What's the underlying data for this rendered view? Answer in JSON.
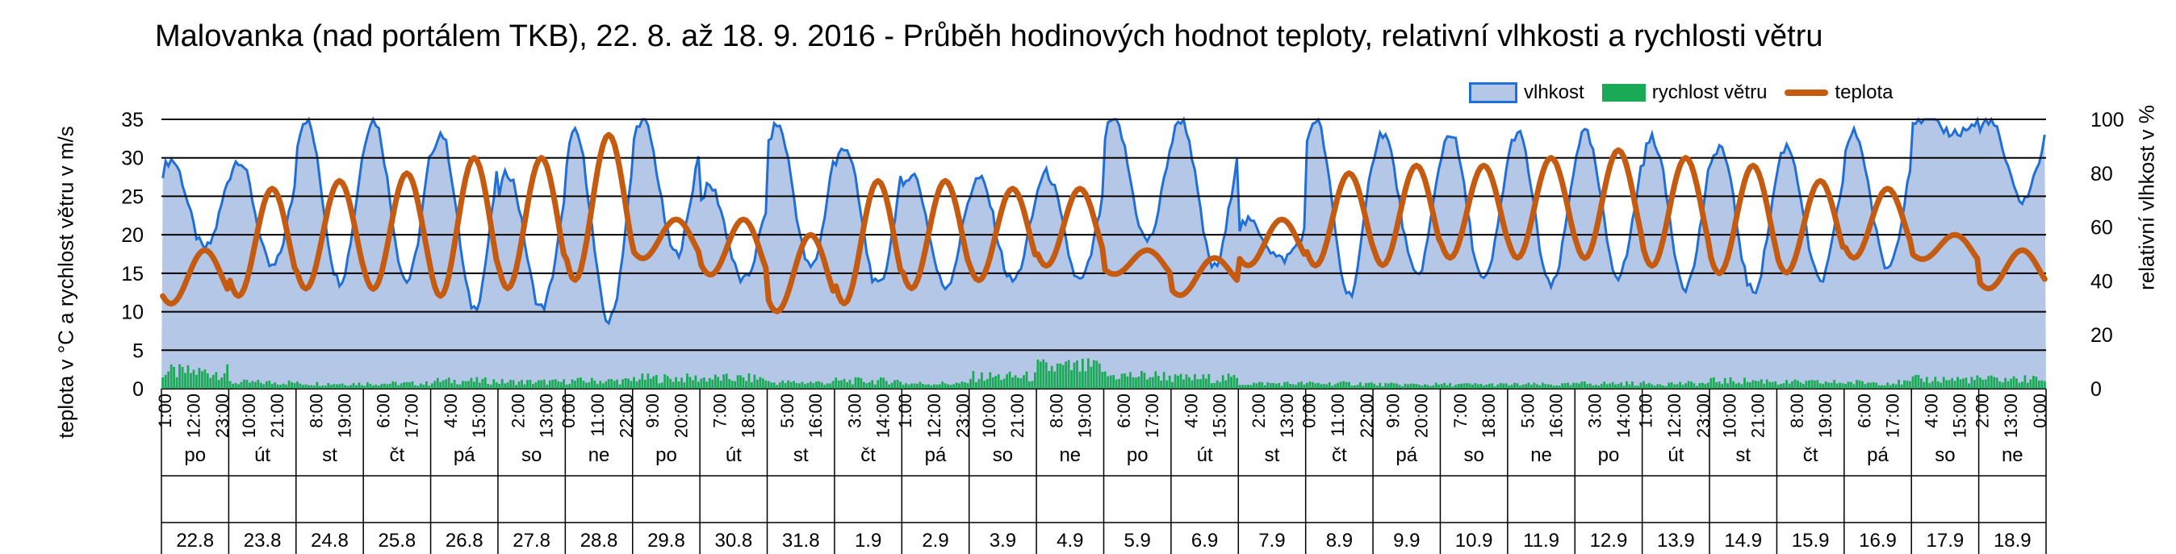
{
  "chart_data": {
    "type": "area",
    "title": "Malovanka (nad portálem TKB), 22. 8. až 18. 9. 2016 - Průběh hodinových hodnot teploty, relativní vlhkosti a rychlosti větru",
    "ylabel": "teplota v °C a rychlost větru v m/s",
    "y2label": "relativní vlhkost v %",
    "ylim": [
      0,
      35
    ],
    "yticks": [
      0,
      5,
      10,
      15,
      20,
      25,
      30,
      35
    ],
    "y2lim": [
      0,
      100
    ],
    "y2ticks": [
      0,
      20,
      40,
      60,
      80,
      100
    ],
    "grid": true,
    "legend_position": "top-right",
    "series": [
      {
        "name": "vlhkost",
        "type": "area",
        "axis": "right",
        "color": "#1f6fd6",
        "fill": "#b4c7e7"
      },
      {
        "name": "rychlost větru",
        "type": "bar",
        "axis": "left",
        "color": "#1aaa55"
      },
      {
        "name": "teplota",
        "type": "line",
        "axis": "left",
        "color": "#c55a11"
      }
    ],
    "days": [
      {
        "weekday": "po",
        "date": "22.8",
        "hours": [
          "1:00",
          "12:00",
          "23:00"
        ]
      },
      {
        "weekday": "út",
        "date": "23.8",
        "hours": [
          "10:00",
          "21:00"
        ]
      },
      {
        "weekday": "st",
        "date": "24.8",
        "hours": [
          "8:00",
          "19:00"
        ]
      },
      {
        "weekday": "čt",
        "date": "25.8",
        "hours": [
          "6:00",
          "17:00"
        ]
      },
      {
        "weekday": "pá",
        "date": "26.8",
        "hours": [
          "4:00",
          "15:00"
        ]
      },
      {
        "weekday": "so",
        "date": "27.8",
        "hours": [
          "2:00",
          "13:00"
        ]
      },
      {
        "weekday": "ne",
        "date": "28.8",
        "hours": [
          "0:00",
          "11:00",
          "22:00"
        ]
      },
      {
        "weekday": "po",
        "date": "29.8",
        "hours": [
          "9:00",
          "20:00"
        ]
      },
      {
        "weekday": "út",
        "date": "30.8",
        "hours": [
          "7:00",
          "18:00"
        ]
      },
      {
        "weekday": "st",
        "date": "31.8",
        "hours": [
          "5:00",
          "16:00"
        ]
      },
      {
        "weekday": "čt",
        "date": "1.9",
        "hours": [
          "3:00",
          "14:00"
        ]
      },
      {
        "weekday": "pá",
        "date": "2.9",
        "hours": [
          "1:00",
          "12:00",
          "23:00"
        ]
      },
      {
        "weekday": "so",
        "date": "3.9",
        "hours": [
          "10:00",
          "21:00"
        ]
      },
      {
        "weekday": "ne",
        "date": "4.9",
        "hours": [
          "8:00",
          "19:00"
        ]
      },
      {
        "weekday": "po",
        "date": "5.9",
        "hours": [
          "6:00",
          "17:00"
        ]
      },
      {
        "weekday": "út",
        "date": "6.9",
        "hours": [
          "4:00",
          "15:00"
        ]
      },
      {
        "weekday": "st",
        "date": "7.9",
        "hours": [
          "2:00",
          "13:00"
        ]
      },
      {
        "weekday": "čt",
        "date": "8.9",
        "hours": [
          "0:00",
          "11:00",
          "22:00"
        ]
      },
      {
        "weekday": "pá",
        "date": "9.9",
        "hours": [
          "9:00",
          "20:00"
        ]
      },
      {
        "weekday": "so",
        "date": "10.9",
        "hours": [
          "7:00",
          "18:00"
        ]
      },
      {
        "weekday": "ne",
        "date": "11.9",
        "hours": [
          "5:00",
          "16:00"
        ]
      },
      {
        "weekday": "po",
        "date": "12.9",
        "hours": [
          "3:00",
          "14:00"
        ]
      },
      {
        "weekday": "út",
        "date": "13.9",
        "hours": [
          "1:00",
          "12:00",
          "23:00"
        ]
      },
      {
        "weekday": "st",
        "date": "14.9",
        "hours": [
          "10:00",
          "21:00"
        ]
      },
      {
        "weekday": "čt",
        "date": "15.9",
        "hours": [
          "8:00",
          "19:00"
        ]
      },
      {
        "weekday": "pá",
        "date": "16.9",
        "hours": [
          "6:00",
          "17:00"
        ]
      },
      {
        "weekday": "so",
        "date": "17.9",
        "hours": [
          "4:00",
          "15:00"
        ]
      },
      {
        "weekday": "ne",
        "date": "18.9",
        "hours": [
          "2:00",
          "13:00",
          "0:00"
        ]
      }
    ],
    "temperature_daily": [
      {
        "min": 11,
        "max": 18
      },
      {
        "min": 12,
        "max": 26
      },
      {
        "min": 13,
        "max": 27
      },
      {
        "min": 13,
        "max": 28
      },
      {
        "min": 12,
        "max": 30
      },
      {
        "min": 13,
        "max": 30
      },
      {
        "min": 14,
        "max": 33
      },
      {
        "min": 17,
        "max": 22
      },
      {
        "min": 15,
        "max": 22
      },
      {
        "min": 10,
        "max": 20
      },
      {
        "min": 11,
        "max": 27
      },
      {
        "min": 13,
        "max": 27
      },
      {
        "min": 14,
        "max": 26
      },
      {
        "min": 16,
        "max": 26
      },
      {
        "min": 15,
        "max": 18
      },
      {
        "min": 12,
        "max": 17
      },
      {
        "min": 16,
        "max": 22
      },
      {
        "min": 16,
        "max": 28
      },
      {
        "min": 16,
        "max": 29
      },
      {
        "min": 17,
        "max": 29
      },
      {
        "min": 17,
        "max": 30
      },
      {
        "min": 17,
        "max": 31
      },
      {
        "min": 16,
        "max": 30
      },
      {
        "min": 15,
        "max": 29
      },
      {
        "min": 15,
        "max": 27
      },
      {
        "min": 17,
        "max": 26
      },
      {
        "min": 17,
        "max": 20
      },
      {
        "min": 13,
        "max": 18
      }
    ],
    "humidity_daily": [
      {
        "min": 52,
        "max": 85
      },
      {
        "min": 45,
        "max": 85
      },
      {
        "min": 40,
        "max": 100
      },
      {
        "min": 40,
        "max": 100
      },
      {
        "min": 30,
        "max": 95
      },
      {
        "min": 30,
        "max": 80
      },
      {
        "min": 25,
        "max": 95
      },
      {
        "min": 50,
        "max": 100
      },
      {
        "min": 40,
        "max": 75
      },
      {
        "min": 45,
        "max": 98
      },
      {
        "min": 38,
        "max": 90
      },
      {
        "min": 38,
        "max": 80
      },
      {
        "min": 40,
        "max": 78
      },
      {
        "min": 40,
        "max": 80
      },
      {
        "min": 55,
        "max": 100
      },
      {
        "min": 45,
        "max": 100
      },
      {
        "min": 48,
        "max": 62
      },
      {
        "min": 35,
        "max": 100
      },
      {
        "min": 42,
        "max": 95
      },
      {
        "min": 40,
        "max": 95
      },
      {
        "min": 38,
        "max": 95
      },
      {
        "min": 42,
        "max": 95
      },
      {
        "min": 38,
        "max": 93
      },
      {
        "min": 36,
        "max": 90
      },
      {
        "min": 40,
        "max": 90
      },
      {
        "min": 45,
        "max": 95
      },
      {
        "min": 95,
        "max": 100
      },
      {
        "min": 70,
        "max": 100
      }
    ],
    "wind_daily_max": [
      3.2,
      1.2,
      1.0,
      1.0,
      1.5,
      1.3,
      1.5,
      2.0,
      2.0,
      1.2,
      1.5,
      1.0,
      2.3,
      4.0,
      2.5,
      2.0,
      1.0,
      1.0,
      0.8,
      0.8,
      0.8,
      1.0,
      1.0,
      1.5,
      1.2,
      1.2,
      1.8,
      1.8
    ]
  }
}
